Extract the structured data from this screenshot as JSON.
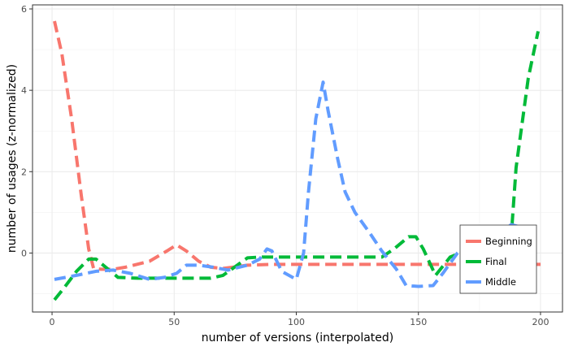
{
  "chart_data": {
    "type": "line",
    "xlabel": "number of versions (interpolated)",
    "ylabel": "number of usages (z-normalized)",
    "xlim": [
      -8,
      209
    ],
    "ylim": [
      -1.45,
      6.1
    ],
    "x_ticks": [
      0,
      50,
      100,
      150,
      200
    ],
    "y_ticks": [
      0,
      2,
      4,
      6
    ],
    "x_tick_labels": [
      "0",
      "50",
      "100",
      "150",
      "200"
    ],
    "y_tick_labels": [
      "0",
      "2",
      "4",
      "6"
    ],
    "grid": true,
    "legend_position": "bottom-right",
    "line_style": "dashed",
    "series": [
      {
        "name": "Beginning",
        "color": "#F8766D",
        "points": [
          [
            1,
            5.7
          ],
          [
            4,
            4.9
          ],
          [
            8,
            3.3
          ],
          [
            12,
            1.4
          ],
          [
            15,
            0.1
          ],
          [
            17,
            -0.38
          ],
          [
            20,
            -0.4
          ],
          [
            25,
            -0.4
          ],
          [
            30,
            -0.35
          ],
          [
            40,
            -0.2
          ],
          [
            47,
            0.05
          ],
          [
            51,
            0.2
          ],
          [
            55,
            0.05
          ],
          [
            60,
            -0.2
          ],
          [
            65,
            -0.35
          ],
          [
            70,
            -0.38
          ],
          [
            80,
            -0.3
          ],
          [
            90,
            -0.28
          ],
          [
            100,
            -0.28
          ],
          [
            120,
            -0.28
          ],
          [
            140,
            -0.28
          ],
          [
            160,
            -0.28
          ],
          [
            180,
            -0.28
          ],
          [
            200,
            -0.28
          ]
        ]
      },
      {
        "name": "Final",
        "color": "#00BA38",
        "points": [
          [
            1,
            -1.15
          ],
          [
            5,
            -0.85
          ],
          [
            10,
            -0.45
          ],
          [
            15,
            -0.15
          ],
          [
            18,
            -0.15
          ],
          [
            22,
            -0.35
          ],
          [
            27,
            -0.6
          ],
          [
            35,
            -0.62
          ],
          [
            50,
            -0.62
          ],
          [
            65,
            -0.62
          ],
          [
            70,
            -0.55
          ],
          [
            80,
            -0.12
          ],
          [
            85,
            -0.1
          ],
          [
            100,
            -0.1
          ],
          [
            120,
            -0.1
          ],
          [
            135,
            -0.1
          ],
          [
            140,
            0.1
          ],
          [
            146,
            0.4
          ],
          [
            149,
            0.4
          ],
          [
            152,
            0.1
          ],
          [
            157,
            -0.55
          ],
          [
            163,
            -0.1
          ],
          [
            175,
            0.2
          ],
          [
            185,
            0.5
          ],
          [
            188,
            0.4
          ],
          [
            190,
            2.1
          ],
          [
            195,
            4.3
          ],
          [
            199,
            5.45
          ]
        ]
      },
      {
        "name": "Middle",
        "color": "#619CFF",
        "points": [
          [
            1,
            -0.65
          ],
          [
            10,
            -0.55
          ],
          [
            18,
            -0.45
          ],
          [
            25,
            -0.42
          ],
          [
            32,
            -0.5
          ],
          [
            40,
            -0.65
          ],
          [
            46,
            -0.6
          ],
          [
            51,
            -0.5
          ],
          [
            55,
            -0.3
          ],
          [
            60,
            -0.3
          ],
          [
            66,
            -0.35
          ],
          [
            72,
            -0.42
          ],
          [
            80,
            -0.3
          ],
          [
            85,
            -0.15
          ],
          [
            88,
            0.1
          ],
          [
            90,
            0.05
          ],
          [
            94,
            -0.45
          ],
          [
            100,
            -0.65
          ],
          [
            103,
            0.0
          ],
          [
            105,
            1.5
          ],
          [
            108,
            3.3
          ],
          [
            111,
            4.2
          ],
          [
            113,
            3.5
          ],
          [
            117,
            2.3
          ],
          [
            120,
            1.5
          ],
          [
            124,
            1.0
          ],
          [
            130,
            0.5
          ],
          [
            135,
            0.05
          ],
          [
            141,
            -0.4
          ],
          [
            145,
            -0.8
          ],
          [
            150,
            -0.82
          ],
          [
            156,
            -0.8
          ],
          [
            160,
            -0.5
          ],
          [
            166,
            0.0
          ],
          [
            172,
            0.3
          ],
          [
            180,
            0.5
          ],
          [
            185,
            0.55
          ],
          [
            188,
            0.7
          ],
          [
            191,
            0.65
          ]
        ]
      }
    ]
  }
}
